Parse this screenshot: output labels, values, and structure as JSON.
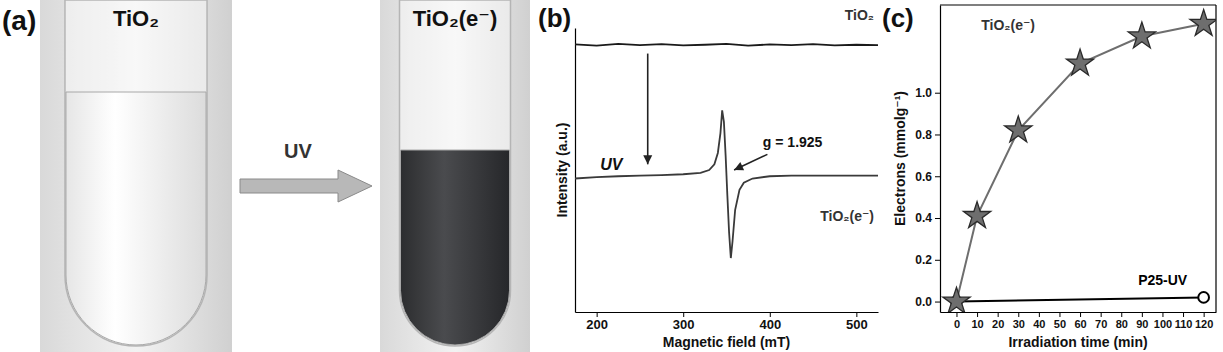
{
  "photo_panel": {
    "label": "(a)",
    "before": "TiO₂",
    "after": "TiO₂(e⁻)",
    "arrow_label": "UV"
  },
  "chart_data": [
    {
      "type": "line",
      "title": "(b)",
      "x_label": "Magnetic field (mT)",
      "y_label": "Intensity (a.u.)",
      "xlim": [
        175,
        525
      ],
      "xticks": [
        200,
        300,
        400,
        500
      ],
      "ylim": [
        0,
        1
      ],
      "tick_labels": "x",
      "annotations": [
        "UV",
        "g = 1.925"
      ],
      "series": [
        {
          "name": "TiO₂",
          "color": "#1a1a1a",
          "line_style": "solid",
          "x": [
            175,
            200,
            225,
            250,
            275,
            300,
            325,
            350,
            375,
            400,
            425,
            450,
            475,
            500,
            525
          ],
          "values": [
            0.942,
            0.938,
            0.944,
            0.94,
            0.943,
            0.939,
            0.941,
            0.944,
            0.938,
            0.942,
            0.94,
            0.943,
            0.939,
            0.941,
            0.94
          ]
        },
        {
          "name": "TiO₂(e⁻)",
          "color": "#3a3a3a",
          "line_style": "solid",
          "x": [
            175,
            200,
            225,
            250,
            275,
            300,
            320,
            330,
            336,
            340,
            343,
            345,
            347,
            349,
            351,
            353,
            355,
            357,
            360,
            365,
            370,
            380,
            400,
            425,
            450,
            475,
            500,
            525
          ],
          "values": [
            0.47,
            0.475,
            0.478,
            0.48,
            0.482,
            0.485,
            0.49,
            0.5,
            0.52,
            0.56,
            0.63,
            0.71,
            0.67,
            0.55,
            0.41,
            0.28,
            0.19,
            0.25,
            0.36,
            0.43,
            0.455,
            0.47,
            0.478,
            0.48,
            0.48,
            0.48,
            0.48,
            0.48
          ]
        }
      ]
    },
    {
      "type": "line",
      "title": "(c)",
      "x_label": "Irradiation time (min)",
      "y_label": "Electrons (mmolg⁻¹)",
      "xlim": [
        -8,
        126
      ],
      "xticks": [
        0,
        10,
        20,
        30,
        40,
        50,
        60,
        70,
        80,
        90,
        100,
        110,
        120
      ],
      "ylim": [
        -0.05,
        1.42
      ],
      "yticks": [
        {
          "value": 0,
          "label": "0.0"
        },
        0.2,
        0.4,
        0.6,
        0.8,
        {
          "value": 1,
          "label": "1.0"
        }
      ],
      "series": [
        {
          "name": "P25-UV",
          "color": "#000000",
          "marker": "circle",
          "line_style": "solid",
          "x": [
            0,
            120
          ],
          "values": [
            0,
            0.02
          ]
        },
        {
          "name": "TiO₂(e⁻)",
          "color": "#6e6e6e",
          "marker": "star",
          "line_style": "solid",
          "x": [
            0,
            10,
            30,
            60,
            90,
            120
          ],
          "values": [
            0,
            0.41,
            0.82,
            1.14,
            1.27,
            1.33
          ]
        }
      ]
    }
  ]
}
